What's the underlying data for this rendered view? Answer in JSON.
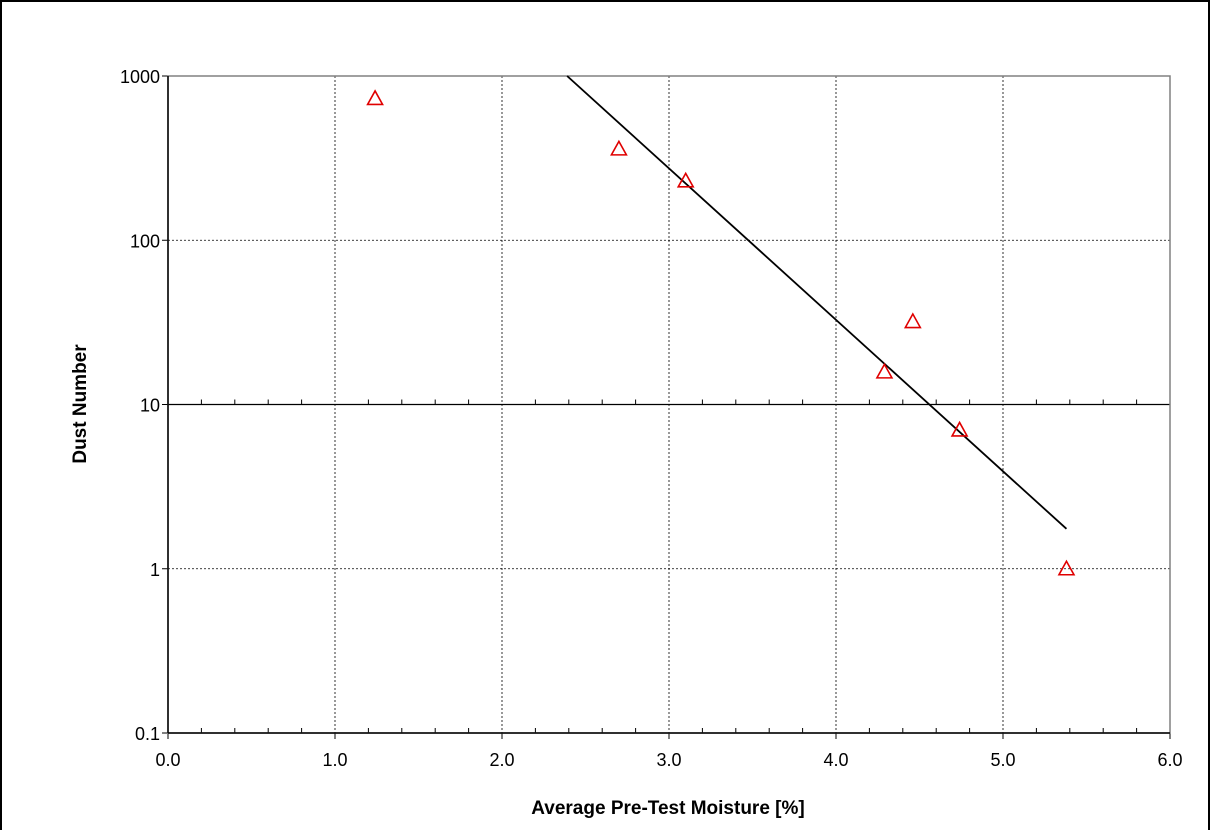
{
  "chart_data": {
    "type": "scatter",
    "title": "",
    "xlabel": "Average Pre-Test Moisture [%]",
    "ylabel": "Dust Number",
    "xlim": [
      0.0,
      6.0
    ],
    "ylim": [
      0.1,
      1000
    ],
    "y_scale": "log",
    "x_ticks": [
      "0.0",
      "1.0",
      "2.0",
      "3.0",
      "4.0",
      "5.0",
      "6.0"
    ],
    "y_ticks": [
      "0.1",
      "1",
      "10",
      "100",
      "1000"
    ],
    "grid": true,
    "legend": "none",
    "series": [
      {
        "marker": "open-triangle",
        "color": "#e00000",
        "points": [
          {
            "x": 1.24,
            "y": 730
          },
          {
            "x": 2.7,
            "y": 360
          },
          {
            "x": 3.1,
            "y": 230
          },
          {
            "x": 4.29,
            "y": 15.8
          },
          {
            "x": 4.46,
            "y": 32
          },
          {
            "x": 4.74,
            "y": 7.0
          },
          {
            "x": 5.38,
            "y": 1.0
          }
        ]
      }
    ],
    "trendline": {
      "color": "#000000",
      "points": [
        {
          "x": 2.39,
          "y": 1000
        },
        {
          "x": 5.38,
          "y": 1.75
        }
      ]
    }
  }
}
